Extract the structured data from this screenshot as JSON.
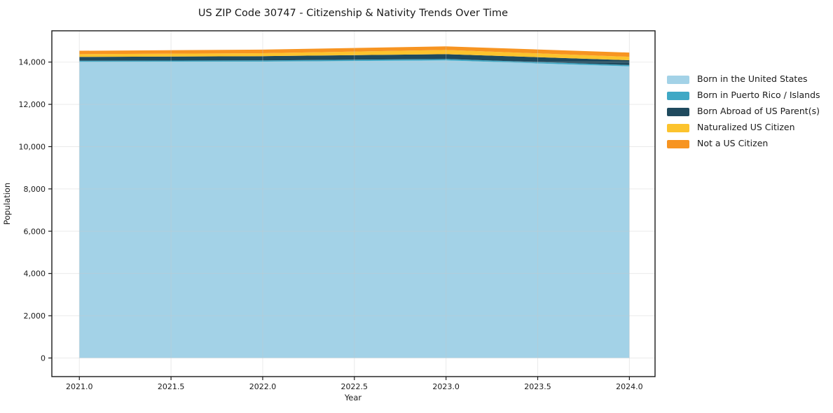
{
  "chart_data": {
    "type": "area",
    "stacked": true,
    "title": "US ZIP Code 30747 - Citizenship & Nativity Trends Over Time",
    "xlabel": "Year",
    "ylabel": "Population",
    "x": [
      2021,
      2022,
      2023,
      2024
    ],
    "series": [
      {
        "name": "Born in the United States",
        "color": "#a3d2e7",
        "values": [
          14010,
          14020,
          14080,
          13800
        ]
      },
      {
        "name": "Born in Puerto Rico / Islands",
        "color": "#3fa8c5",
        "values": [
          55,
          60,
          65,
          60
        ]
      },
      {
        "name": "Born Abroad of US Parent(s)",
        "color": "#1f4a5e",
        "values": [
          180,
          200,
          230,
          230
        ]
      },
      {
        "name": "Naturalized US Citizen",
        "color": "#fcc32d",
        "values": [
          130,
          140,
          200,
          160
        ]
      },
      {
        "name": "Not a US Citizen",
        "color": "#f79421",
        "values": [
          160,
          170,
          170,
          200
        ]
      }
    ],
    "xlim": [
      2020.85,
      2024.14
    ],
    "ylim": [
      -880,
      15480
    ],
    "xticks": [
      2021.0,
      2021.5,
      2022.0,
      2022.5,
      2023.0,
      2023.5,
      2024.0
    ],
    "yticks": [
      0,
      2000,
      4000,
      6000,
      8000,
      10000,
      12000,
      14000
    ],
    "grid": true,
    "legend_position": "right",
    "colors": {
      "grid": "#c8c8c8",
      "spine": "#1a1a1a",
      "background": "#ffffff"
    }
  }
}
